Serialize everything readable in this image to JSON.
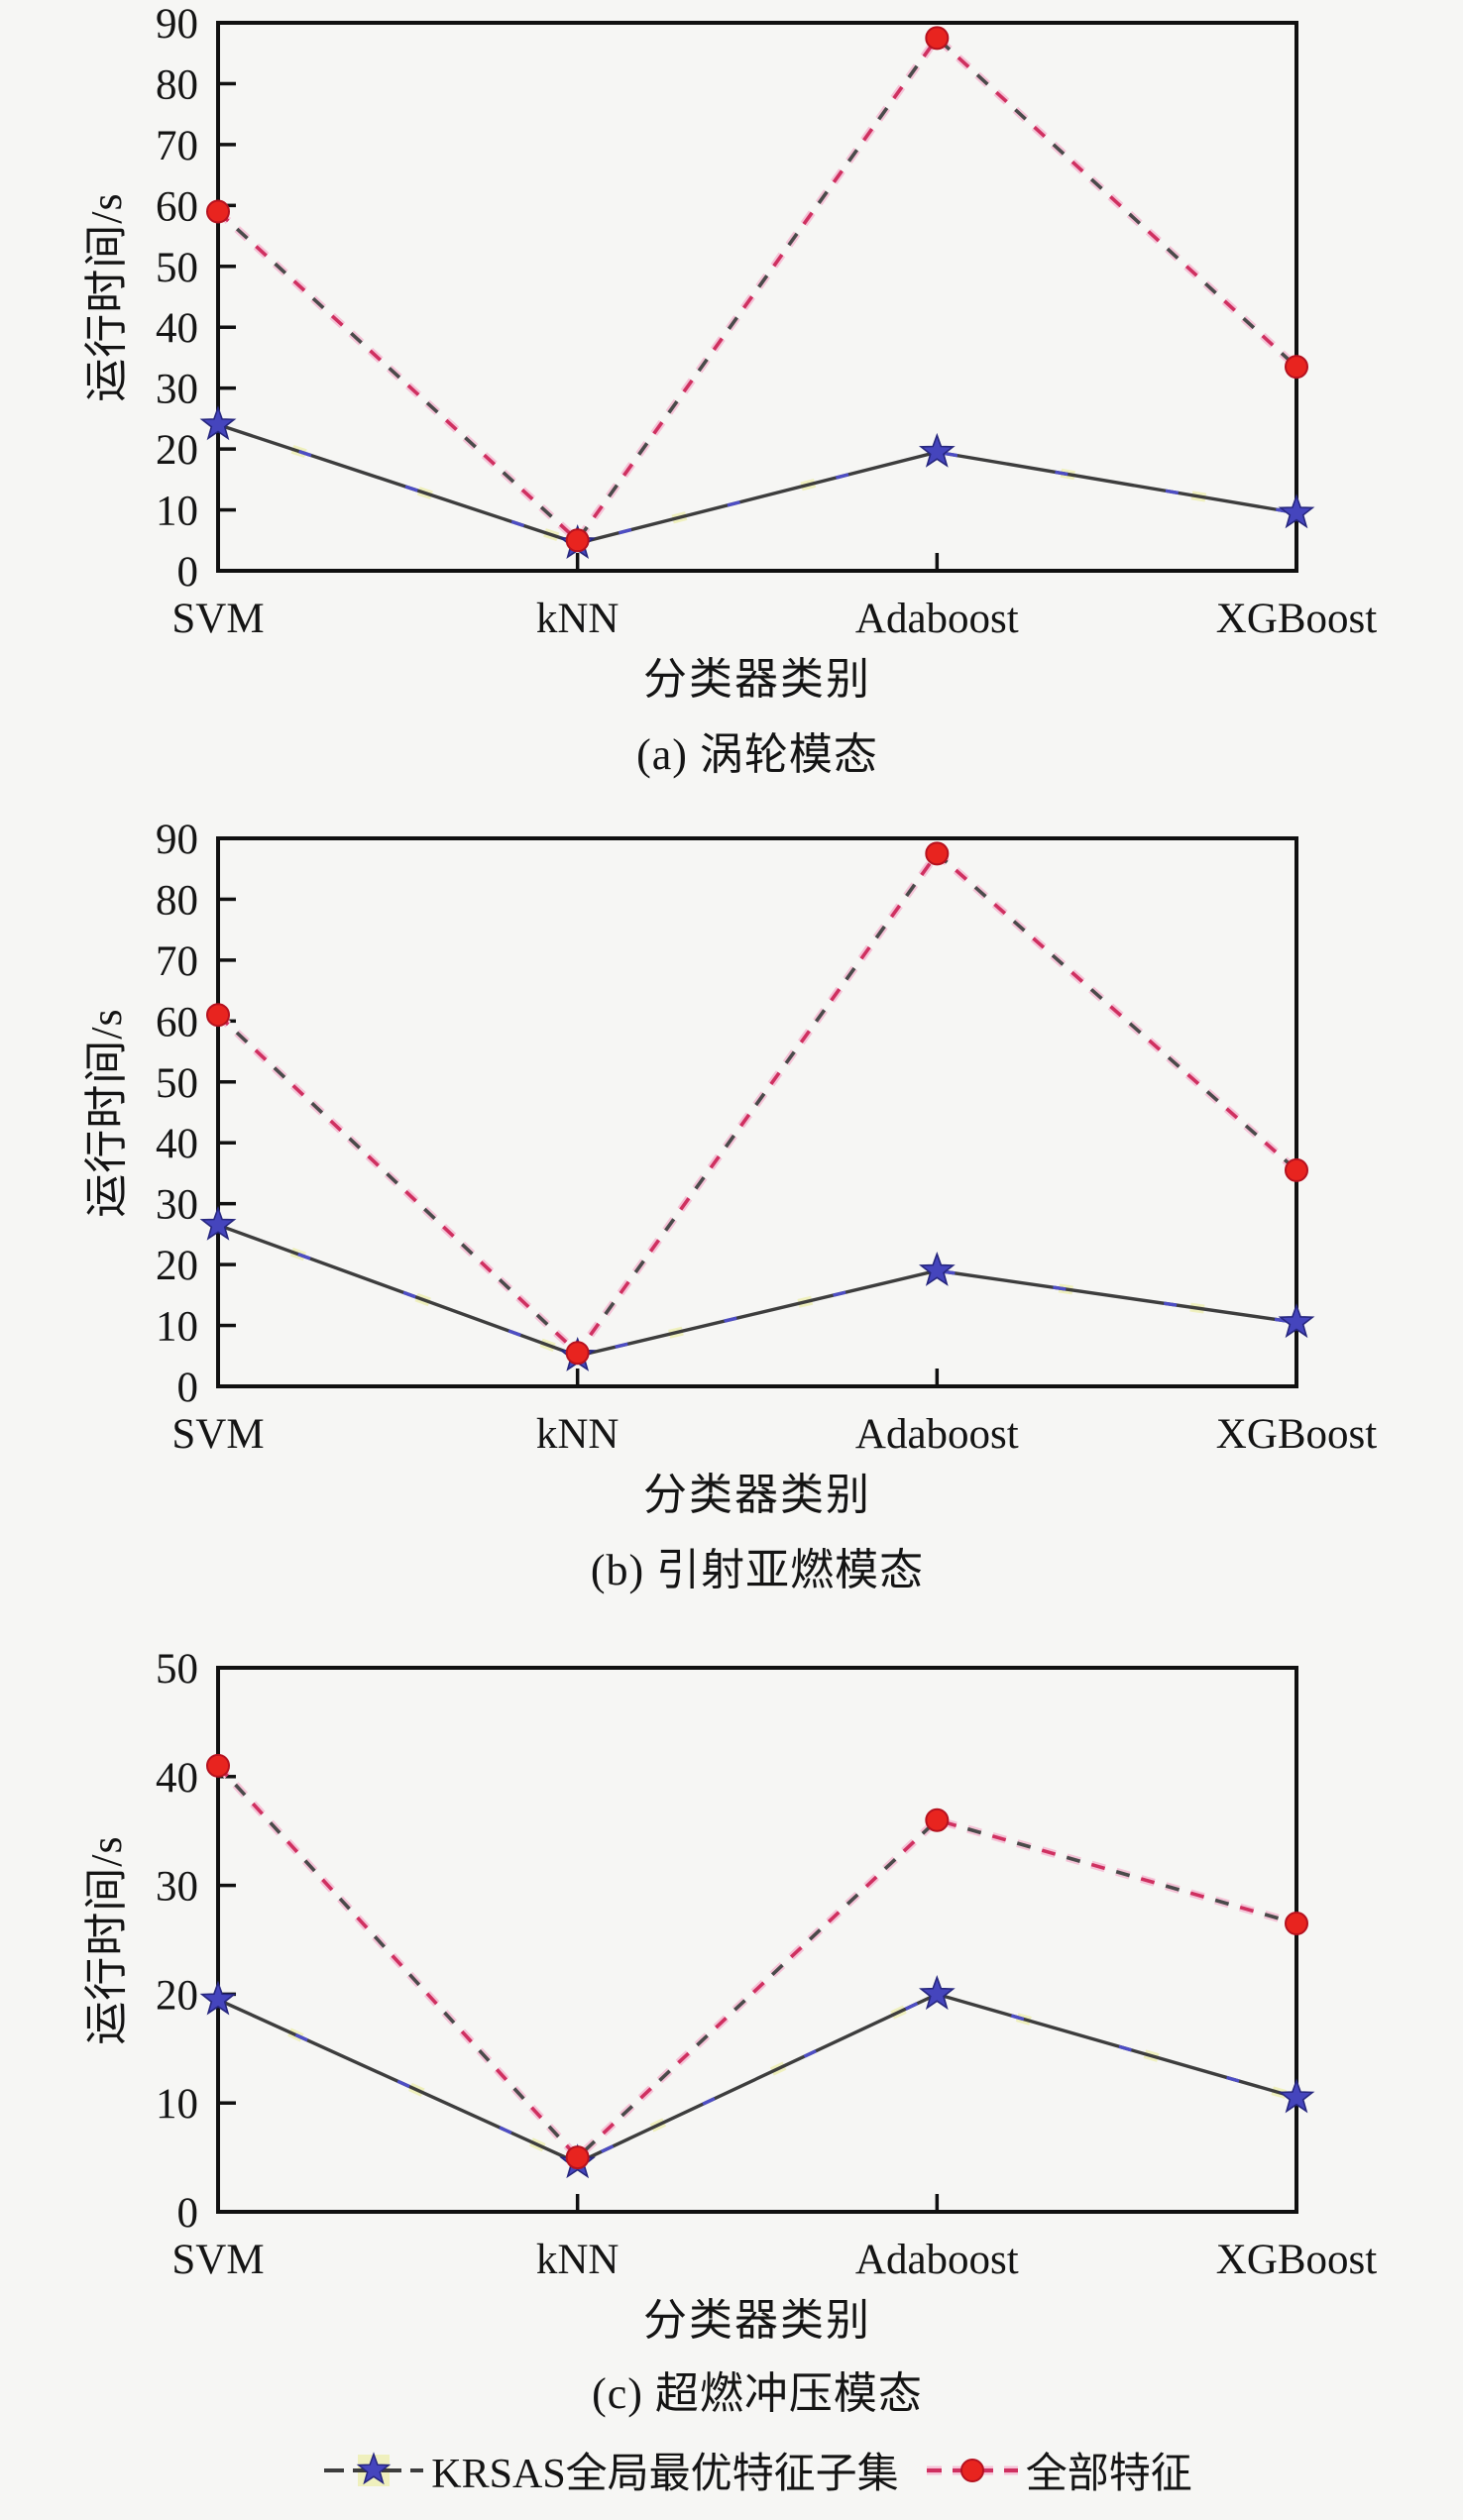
{
  "page": {
    "background": "#f6f6f4",
    "text_color": "#141414"
  },
  "colors": {
    "frame": "#101010",
    "krsas_line": "#3d3d3d",
    "krsas_blue_dash": "#4d4dc4",
    "krsas_star_fill": "#4545bd",
    "krsas_star_edge": "#26267e",
    "krsas_yellow_glint": "#eff0bd",
    "all_red_dash": "#cf3060",
    "all_dark_dash": "#4a4a4a",
    "all_pink_halo": "#f5c3d7",
    "all_circle_fill": "#e8241f",
    "all_circle_edge": "#b5121f"
  },
  "legend": {
    "series1_label": "KRSAS全局最优特征子集",
    "series2_label": "全部特征"
  },
  "chart_data": [
    {
      "type": "line",
      "title": "(a) 涡轮模态",
      "xlabel": "分类器类别",
      "ylabel": "运行时间/s",
      "categories": [
        "SVM",
        "kNN",
        "Adaboost",
        "XGBoost"
      ],
      "ylim": [
        0,
        90
      ],
      "ytick_step": 10,
      "grid": false,
      "legend_position": "below-figure",
      "series": [
        {
          "name": "KRSAS全局最优特征子集",
          "style": "solid-dark-with-blue-star",
          "values": [
            24,
            4.5,
            19.5,
            9.5
          ]
        },
        {
          "name": "全部特征",
          "style": "red-dashed-with-circle",
          "values": [
            59,
            5,
            87.5,
            33.5
          ]
        }
      ]
    },
    {
      "type": "line",
      "title": "(b) 引射亚燃模态",
      "xlabel": "分类器类别",
      "ylabel": "运行时间/s",
      "categories": [
        "SVM",
        "kNN",
        "Adaboost",
        "XGBoost"
      ],
      "ylim": [
        0,
        90
      ],
      "ytick_step": 10,
      "grid": false,
      "legend_position": "below-figure",
      "series": [
        {
          "name": "KRSAS全局最优特征子集",
          "style": "solid-dark-with-blue-star",
          "values": [
            26.5,
            5,
            19,
            10.5
          ]
        },
        {
          "name": "全部特征",
          "style": "red-dashed-with-circle",
          "values": [
            61,
            5.5,
            87.5,
            35.5
          ]
        }
      ]
    },
    {
      "type": "line",
      "title": "(c) 超燃冲压模态",
      "xlabel": "分类器类别",
      "ylabel": "运行时间/s",
      "categories": [
        "SVM",
        "kNN",
        "Adaboost",
        "XGBoost"
      ],
      "ylim": [
        0,
        50
      ],
      "ytick_step": 10,
      "grid": false,
      "legend_position": "below-figure",
      "series": [
        {
          "name": "KRSAS全局最优特征子集",
          "style": "solid-dark-with-blue-star",
          "values": [
            19.5,
            4.5,
            20,
            10.5
          ]
        },
        {
          "name": "全部特征",
          "style": "red-dashed-with-circle",
          "values": [
            41,
            5,
            36,
            26.5
          ]
        }
      ]
    }
  ]
}
